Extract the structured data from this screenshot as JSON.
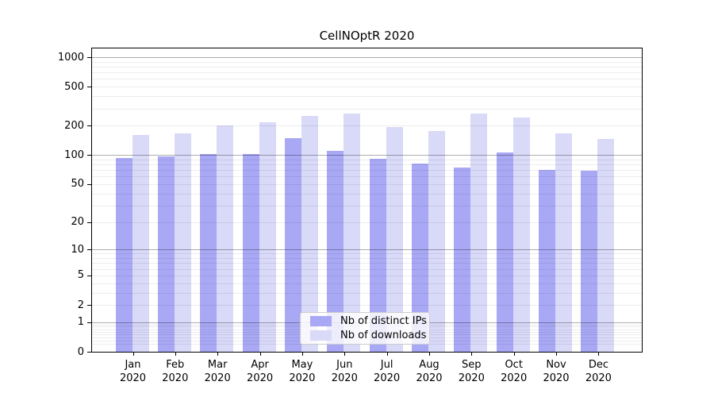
{
  "title": "CellNOptR 2020",
  "chart_data": {
    "type": "bar",
    "title": "CellNOptR 2020",
    "categories": [
      "Jan 2020",
      "Feb 2020",
      "Mar 2020",
      "Apr 2020",
      "May 2020",
      "Jun 2020",
      "Jul 2020",
      "Aug 2020",
      "Sep 2020",
      "Oct 2020",
      "Nov 2020",
      "Dec 2020"
    ],
    "series": [
      {
        "name": "Nb of distinct IPs",
        "color": "#a8a8f5",
        "values": [
          94,
          96,
          102,
          103,
          148,
          111,
          91,
          82,
          74,
          107,
          70,
          69
        ]
      },
      {
        "name": "Nb of downloads",
        "color": "#d9d9f8",
        "values": [
          162,
          168,
          200,
          218,
          252,
          265,
          195,
          175,
          268,
          244,
          168,
          147
        ]
      }
    ],
    "xlabel": "",
    "ylabel": "",
    "yscale": "log1p",
    "yticks": [
      0,
      1,
      2,
      5,
      10,
      20,
      50,
      100,
      200,
      500,
      1000
    ],
    "ylim": [
      0,
      1000
    ],
    "grid": "on",
    "legend_position": "bottom-center",
    "colors": {
      "major_gridline": "#aaaaaa",
      "minor_gridline": "#ececec",
      "axis": "#000000",
      "background": "#ffffff"
    }
  }
}
